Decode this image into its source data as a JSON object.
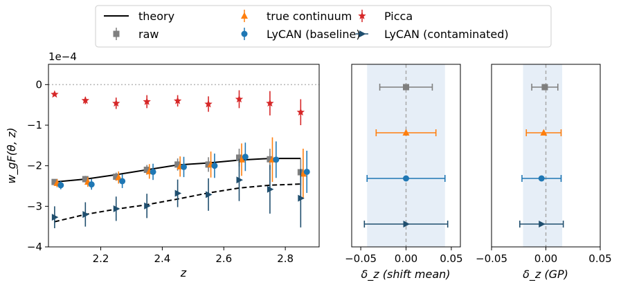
{
  "legend": [
    {
      "key": "theory",
      "label": "theory",
      "color": "#000000",
      "marker": "line"
    },
    {
      "key": "raw",
      "label": "raw",
      "color": "#7f7f7f",
      "marker": "square"
    },
    {
      "key": "true",
      "label": "true continuum",
      "color": "#ff7f0e",
      "marker": "triangle-up"
    },
    {
      "key": "baseline",
      "label": "LyCAN (baseline)",
      "color": "#1f77b4",
      "marker": "circle"
    },
    {
      "key": "picca",
      "label": "Picca",
      "color": "#d62728",
      "marker": "star"
    },
    {
      "key": "contam",
      "label": "LyCAN (contaminated)",
      "color": "#1f4e6e",
      "marker": "triangle-right"
    }
  ],
  "chart_data": [
    {
      "type": "scatter",
      "panel": "main",
      "ylabel": "w_gF(θ, z)",
      "xlabel": "z",
      "y_scale_label": "1e−4",
      "xlim": [
        2.03,
        2.91
      ],
      "ylim": [
        -4.0,
        0.5
      ],
      "x_ticks": [
        "2.2",
        "2.4",
        "2.6",
        "2.8"
      ],
      "x_tick_values": [
        2.2,
        2.4,
        2.6,
        2.8
      ],
      "y_ticks": [
        "0",
        "−1",
        "−2",
        "−3",
        "−4"
      ],
      "y_tick_values": [
        0,
        -1,
        -2,
        -3,
        -4
      ],
      "zero_line": true,
      "theory_solid": {
        "x": [
          2.05,
          2.15,
          2.25,
          2.35,
          2.45,
          2.55,
          2.65,
          2.75,
          2.85
        ],
        "y": [
          -2.4,
          -2.33,
          -2.22,
          -2.1,
          -1.98,
          -1.93,
          -1.86,
          -1.82,
          -1.82
        ]
      },
      "theory_dashed": {
        "x": [
          2.05,
          2.15,
          2.25,
          2.35,
          2.45,
          2.55,
          2.65,
          2.75,
          2.85
        ],
        "y": [
          -3.38,
          -3.2,
          -3.07,
          -2.96,
          -2.82,
          -2.67,
          -2.55,
          -2.48,
          -2.45
        ]
      },
      "series": [
        {
          "name": "raw",
          "x": [
            2.05,
            2.15,
            2.25,
            2.35,
            2.45,
            2.55,
            2.65,
            2.75,
            2.85
          ],
          "y": [
            -2.4,
            -2.33,
            -2.27,
            -2.1,
            -1.97,
            -1.97,
            -1.8,
            -1.84,
            -2.16
          ],
          "err": [
            0.06,
            0.08,
            0.1,
            0.12,
            0.15,
            0.18,
            0.22,
            0.26,
            0.33
          ]
        },
        {
          "name": "true",
          "x": [
            2.058,
            2.158,
            2.258,
            2.358,
            2.458,
            2.558,
            2.658,
            2.758,
            2.858
          ],
          "y": [
            -2.43,
            -2.4,
            -2.29,
            -2.14,
            -2.02,
            -1.97,
            -1.85,
            -1.85,
            -2.2
          ],
          "err": [
            0.1,
            0.12,
            0.15,
            0.18,
            0.25,
            0.32,
            0.4,
            0.55,
            0.62
          ]
        },
        {
          "name": "baseline",
          "x": [
            2.07,
            2.17,
            2.27,
            2.37,
            2.47,
            2.57,
            2.67,
            2.77,
            2.87
          ],
          "y": [
            -2.48,
            -2.46,
            -2.38,
            -2.15,
            -2.03,
            -2.0,
            -1.78,
            -1.85,
            -2.15
          ],
          "err": [
            0.1,
            0.13,
            0.17,
            0.2,
            0.25,
            0.3,
            0.35,
            0.45,
            0.52
          ]
        },
        {
          "name": "picca",
          "x": [
            2.05,
            2.15,
            2.25,
            2.35,
            2.45,
            2.55,
            2.65,
            2.75,
            2.85
          ],
          "y": [
            -0.24,
            -0.39,
            -0.46,
            -0.42,
            -0.4,
            -0.48,
            -0.36,
            -0.46,
            -0.68
          ],
          "err": [
            0.04,
            0.09,
            0.14,
            0.16,
            0.14,
            0.19,
            0.22,
            0.3,
            0.32
          ]
        },
        {
          "name": "contam",
          "x": [
            2.05,
            2.15,
            2.25,
            2.35,
            2.45,
            2.55,
            2.65,
            2.75,
            2.85
          ],
          "y": [
            -3.27,
            -3.2,
            -3.06,
            -2.99,
            -2.68,
            -2.71,
            -2.35,
            -2.58,
            -2.8
          ],
          "err": [
            0.27,
            0.3,
            0.3,
            0.3,
            0.34,
            0.4,
            0.52,
            0.6,
            0.72
          ]
        }
      ]
    },
    {
      "type": "scatter",
      "panel": "shift-mean",
      "xlabel": "δ_z (shift mean)",
      "xlim": [
        -0.06,
        0.06
      ],
      "x_ticks": [
        "−0.05",
        "0.00",
        "0.05"
      ],
      "x_tick_values": [
        -0.05,
        0.0,
        0.05
      ],
      "band": [
        -0.043,
        0.043
      ],
      "ylim": [
        0.5,
        4.5
      ],
      "points": [
        {
          "series": "raw",
          "x": 0.0,
          "err": 0.029,
          "row": 4
        },
        {
          "series": "true",
          "x": 0.0,
          "err": 0.033,
          "row": 3
        },
        {
          "series": "baseline",
          "x": 0.0,
          "err": 0.043,
          "row": 2
        },
        {
          "series": "contam",
          "x": 0.0,
          "err": 0.046,
          "row": 1
        }
      ]
    },
    {
      "type": "scatter",
      "panel": "gp",
      "xlabel": "δ_z (GP)",
      "xlim": [
        -0.05,
        0.05
      ],
      "x_ticks": [
        "−0.05",
        "0.00",
        "0.05"
      ],
      "x_tick_values": [
        -0.05,
        0.0,
        0.05
      ],
      "band": [
        -0.021,
        0.015
      ],
      "ylim": [
        0.5,
        4.5
      ],
      "points": [
        {
          "series": "raw",
          "x": -0.001,
          "err": 0.012,
          "row": 4
        },
        {
          "series": "true",
          "x": -0.002,
          "err": 0.016,
          "row": 3
        },
        {
          "series": "baseline",
          "x": -0.004,
          "err": 0.018,
          "row": 2
        },
        {
          "series": "contam",
          "x": -0.004,
          "err": 0.02,
          "row": 1
        }
      ]
    }
  ]
}
